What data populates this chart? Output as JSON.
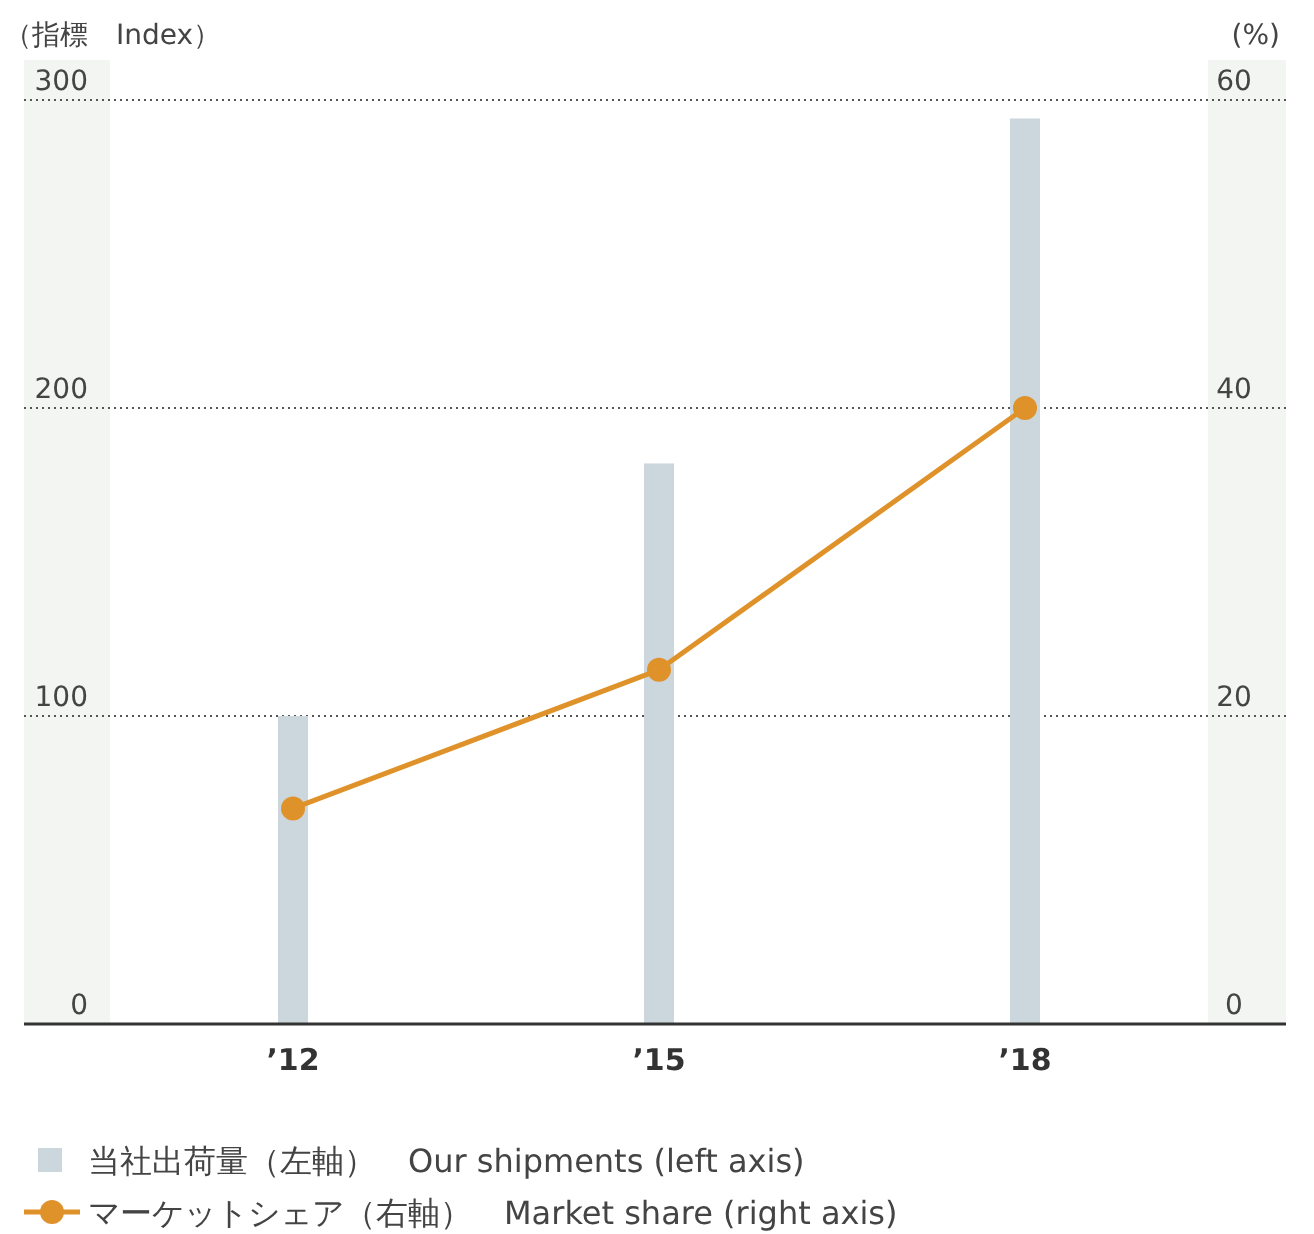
{
  "chart_data": {
    "type": "bar",
    "ylabel": "（指標　Index）",
    "y2label": "(%)",
    "categories": [
      "’12",
      "’15",
      "’18"
    ],
    "series": [
      {
        "name": "当社出荷量（左軸）　Our shipments (left axis)",
        "color": "#ccd6dd",
        "values": [
          100,
          182,
          294
        ]
      },
      {
        "name": "マーケットシェア（右軸）　Market share (right axis)",
        "type": "line",
        "axis": "y2",
        "color": "#e0922a",
        "marker": "circle",
        "values": [
          14,
          23,
          40
        ]
      }
    ],
    "ylim": [
      0,
      300
    ],
    "yticks": [
      0,
      100,
      200,
      300
    ],
    "y2lim": [
      0,
      60
    ],
    "y2ticks": [
      0,
      20,
      40,
      60
    ],
    "grid": "y",
    "legend": "bottom left"
  }
}
